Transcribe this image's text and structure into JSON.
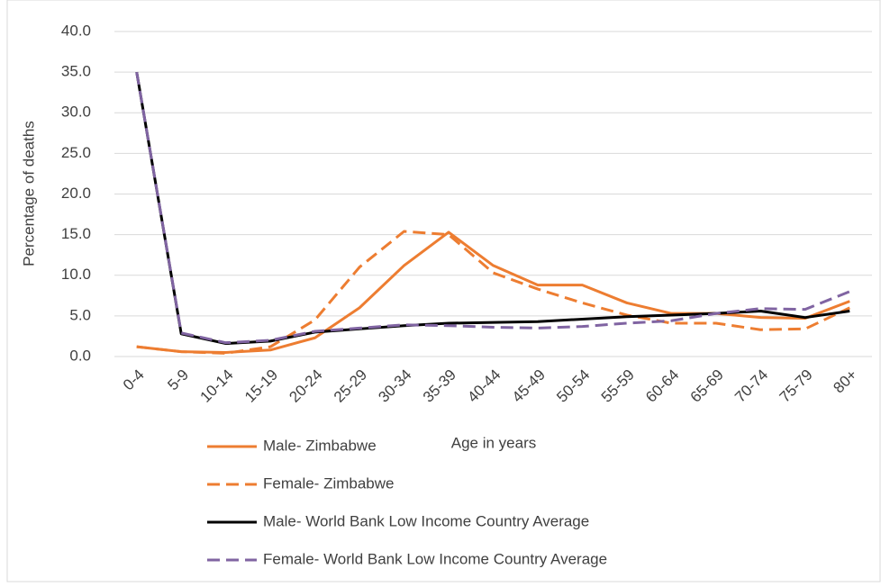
{
  "chart_data": {
    "type": "line",
    "x_label": "Age in years",
    "y_label": "Percentage of deaths",
    "categories": [
      "0-4",
      "5-9",
      "10-14",
      "15-19",
      "20-24",
      "25-29",
      "30-34",
      "35-39",
      "40-44",
      "45-49",
      "50-54",
      "55-59",
      "60-64",
      "65-69",
      "70-74",
      "75-79",
      "80+"
    ],
    "series": [
      {
        "name": "Male- Zimbabwe",
        "color": "#ed7d31",
        "dashed": false,
        "values": [
          1.2,
          0.6,
          0.5,
          0.8,
          2.3,
          6.0,
          11.2,
          15.3,
          11.2,
          8.8,
          8.8,
          6.6,
          5.3,
          5.3,
          4.8,
          4.7,
          6.8
        ]
      },
      {
        "name": "Female- Zimbabwe",
        "color": "#ed7d31",
        "dashed": true,
        "values": [
          1.2,
          0.6,
          0.4,
          1.2,
          4.5,
          11.0,
          15.4,
          15.0,
          10.3,
          8.3,
          6.6,
          5.1,
          4.1,
          4.1,
          3.3,
          3.4,
          6.0
        ]
      },
      {
        "name": "Male- World Bank Low Income Country Average",
        "color": "#000000",
        "dashed": false,
        "values": [
          35.0,
          2.8,
          1.6,
          1.9,
          3.0,
          3.4,
          3.8,
          4.1,
          4.2,
          4.3,
          4.6,
          4.9,
          5.1,
          5.3,
          5.6,
          4.8,
          5.6
        ]
      },
      {
        "name": "Female- World Bank Low Income Country Average",
        "color": "#8064a2",
        "dashed": true,
        "values": [
          35.0,
          2.9,
          1.7,
          2.0,
          3.1,
          3.5,
          3.9,
          3.8,
          3.6,
          3.5,
          3.7,
          4.1,
          4.4,
          5.3,
          5.9,
          5.8,
          8.0
        ]
      }
    ],
    "ylim": [
      0,
      40
    ],
    "yticks": [
      {
        "value": 0,
        "label": "0.0"
      },
      {
        "value": 5,
        "label": "5.0"
      },
      {
        "value": 10,
        "label": "10.0"
      },
      {
        "value": 15,
        "label": "15.0"
      },
      {
        "value": 20,
        "label": "20.0"
      },
      {
        "value": 25,
        "label": "25.0"
      },
      {
        "value": 30,
        "label": "30.0"
      },
      {
        "value": 35,
        "label": "35.0"
      },
      {
        "value": 40,
        "label": "40.0"
      }
    ],
    "grid": true,
    "legend": "bottom"
  }
}
